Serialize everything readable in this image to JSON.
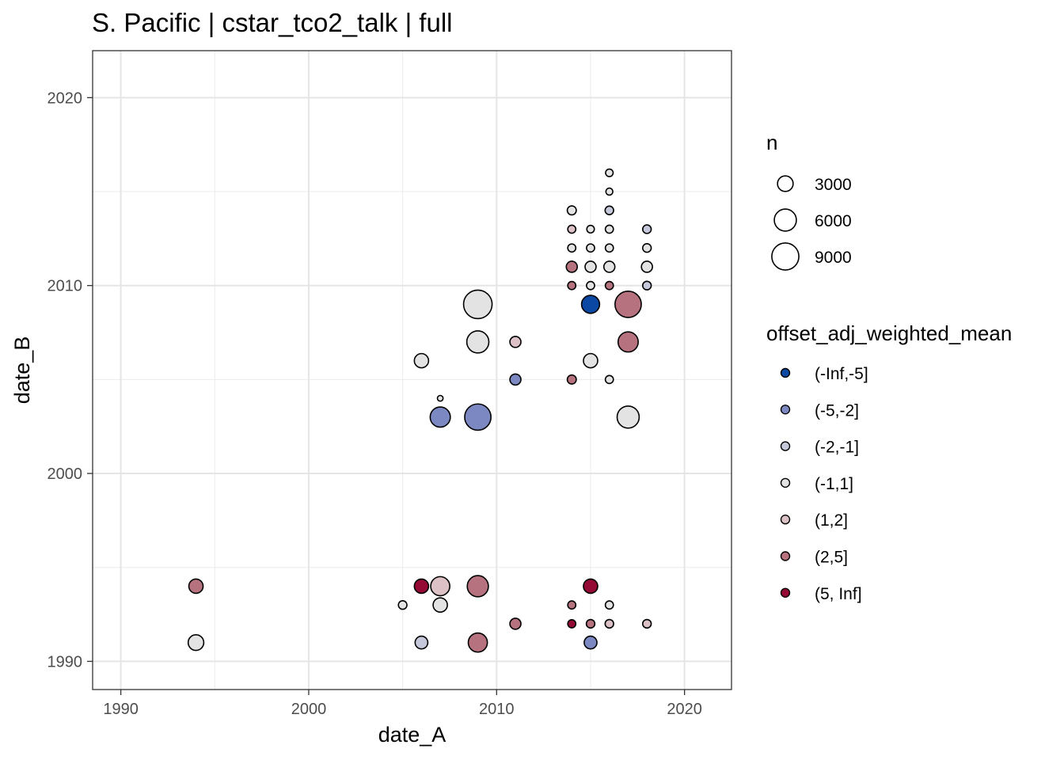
{
  "chart_data": {
    "type": "scatter",
    "title": "S. Pacific | cstar_tco2_talk | full",
    "xlabel": "date_A",
    "ylabel": "date_B",
    "xlim": [
      1988.5,
      2022.5
    ],
    "ylim": [
      1988.5,
      2022.5
    ],
    "x_ticks": [
      {
        "value": 1990,
        "label": "1990"
      },
      {
        "value": 2000,
        "label": "2000"
      },
      {
        "value": 2010,
        "label": "2010"
      },
      {
        "value": 2020,
        "label": "2020"
      }
    ],
    "y_ticks": [
      {
        "value": 1990,
        "label": "1990"
      },
      {
        "value": 2000,
        "label": "2000"
      },
      {
        "value": 2010,
        "label": "2010"
      },
      {
        "value": 2020,
        "label": "2020"
      }
    ],
    "grid": true,
    "size_legend": {
      "title": "n",
      "entries": [
        {
          "value": 3000,
          "label": "3000"
        },
        {
          "value": 6000,
          "label": "6000"
        },
        {
          "value": 9000,
          "label": "9000"
        }
      ]
    },
    "color_legend": {
      "title": "offset_adj_weighted_mean",
      "entries": [
        {
          "key": "a",
          "label": "(-Inf,-5]",
          "color": "#0b48a4"
        },
        {
          "key": "b",
          "label": "(-5,-2]",
          "color": "#7c88c2"
        },
        {
          "key": "c",
          "label": "(-2,-1]",
          "color": "#c5c8db"
        },
        {
          "key": "d",
          "label": "(-1,1]",
          "color": "#e3e3e3"
        },
        {
          "key": "e",
          "label": "(1,2]",
          "color": "#dcc1c6"
        },
        {
          "key": "f",
          "label": "(2,5]",
          "color": "#b6737f"
        },
        {
          "key": "g",
          "label": "(5, Inf]",
          "color": "#940a34"
        }
      ]
    },
    "points": [
      {
        "x": 1994,
        "y": 1994,
        "n": 2500,
        "color": "f"
      },
      {
        "x": 1994,
        "y": 1991,
        "n": 3000,
        "color": "d"
      },
      {
        "x": 2005,
        "y": 1993,
        "n": 900,
        "color": "d"
      },
      {
        "x": 2006,
        "y": 1994,
        "n": 2500,
        "color": "g"
      },
      {
        "x": 2006,
        "y": 1991,
        "n": 2000,
        "color": "c"
      },
      {
        "x": 2006,
        "y": 2006,
        "n": 2500,
        "color": "d"
      },
      {
        "x": 2007,
        "y": 1994,
        "n": 4500,
        "color": "e"
      },
      {
        "x": 2007,
        "y": 1993,
        "n": 2500,
        "color": "d"
      },
      {
        "x": 2007,
        "y": 2003,
        "n": 5000,
        "color": "b"
      },
      {
        "x": 2007,
        "y": 2004,
        "n": 400,
        "color": "d"
      },
      {
        "x": 2009,
        "y": 1994,
        "n": 5500,
        "color": "f"
      },
      {
        "x": 2009,
        "y": 1991,
        "n": 4500,
        "color": "f"
      },
      {
        "x": 2009,
        "y": 2003,
        "n": 8500,
        "color": "b"
      },
      {
        "x": 2009,
        "y": 2007,
        "n": 6000,
        "color": "d"
      },
      {
        "x": 2009,
        "y": 2009,
        "n": 10000,
        "color": "d"
      },
      {
        "x": 2011,
        "y": 1992,
        "n": 1500,
        "color": "f"
      },
      {
        "x": 2011,
        "y": 2005,
        "n": 1500,
        "color": "b"
      },
      {
        "x": 2011,
        "y": 2007,
        "n": 1500,
        "color": "e"
      },
      {
        "x": 2014,
        "y": 1993,
        "n": 800,
        "color": "f"
      },
      {
        "x": 2014,
        "y": 1992,
        "n": 800,
        "color": "g"
      },
      {
        "x": 2014,
        "y": 2005,
        "n": 1000,
        "color": "f"
      },
      {
        "x": 2014,
        "y": 2010,
        "n": 800,
        "color": "f"
      },
      {
        "x": 2014,
        "y": 2011,
        "n": 1500,
        "color": "f"
      },
      {
        "x": 2014,
        "y": 2012,
        "n": 800,
        "color": "d"
      },
      {
        "x": 2014,
        "y": 2013,
        "n": 800,
        "color": "e"
      },
      {
        "x": 2014,
        "y": 2014,
        "n": 1000,
        "color": "d"
      },
      {
        "x": 2015,
        "y": 1994,
        "n": 2500,
        "color": "g"
      },
      {
        "x": 2015,
        "y": 1992,
        "n": 900,
        "color": "f"
      },
      {
        "x": 2015,
        "y": 1991,
        "n": 2000,
        "color": "b"
      },
      {
        "x": 2015,
        "y": 2006,
        "n": 2500,
        "color": "d"
      },
      {
        "x": 2015,
        "y": 2009,
        "n": 4000,
        "color": "a"
      },
      {
        "x": 2015,
        "y": 2010,
        "n": 800,
        "color": "d"
      },
      {
        "x": 2015,
        "y": 2011,
        "n": 1500,
        "color": "d"
      },
      {
        "x": 2015,
        "y": 2012,
        "n": 800,
        "color": "d"
      },
      {
        "x": 2015,
        "y": 2013,
        "n": 700,
        "color": "d"
      },
      {
        "x": 2016,
        "y": 1993,
        "n": 800,
        "color": "d"
      },
      {
        "x": 2016,
        "y": 1992,
        "n": 900,
        "color": "e"
      },
      {
        "x": 2016,
        "y": 2005,
        "n": 800,
        "color": "d"
      },
      {
        "x": 2016,
        "y": 2010,
        "n": 800,
        "color": "f"
      },
      {
        "x": 2016,
        "y": 2011,
        "n": 1500,
        "color": "d"
      },
      {
        "x": 2016,
        "y": 2012,
        "n": 800,
        "color": "d"
      },
      {
        "x": 2016,
        "y": 2013,
        "n": 800,
        "color": "d"
      },
      {
        "x": 2016,
        "y": 2014,
        "n": 900,
        "color": "c"
      },
      {
        "x": 2016,
        "y": 2015,
        "n": 600,
        "color": "d"
      },
      {
        "x": 2016,
        "y": 2016,
        "n": 700,
        "color": "d"
      },
      {
        "x": 2017,
        "y": 2003,
        "n": 6000,
        "color": "d"
      },
      {
        "x": 2017,
        "y": 2007,
        "n": 5000,
        "color": "f"
      },
      {
        "x": 2017,
        "y": 2009,
        "n": 8500,
        "color": "f"
      },
      {
        "x": 2018,
        "y": 1992,
        "n": 900,
        "color": "e"
      },
      {
        "x": 2018,
        "y": 2010,
        "n": 900,
        "color": "c"
      },
      {
        "x": 2018,
        "y": 2011,
        "n": 1500,
        "color": "d"
      },
      {
        "x": 2018,
        "y": 2012,
        "n": 900,
        "color": "d"
      },
      {
        "x": 2018,
        "y": 2013,
        "n": 900,
        "color": "c"
      }
    ]
  }
}
